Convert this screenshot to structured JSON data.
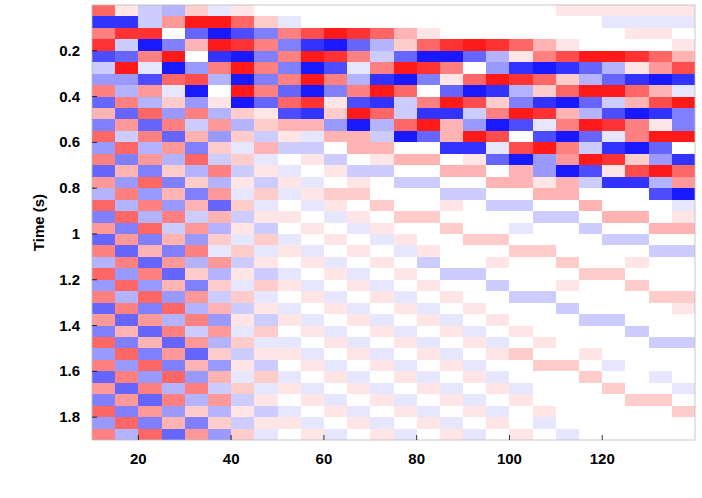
{
  "chart_data": {
    "type": "heatmap",
    "ylabel": "Time (s)",
    "xlim": [
      10,
      140
    ],
    "ylim": [
      1.9,
      0
    ],
    "xticks": [
      20,
      40,
      60,
      80,
      100,
      120
    ],
    "yticks": [
      0.2,
      0.4,
      0.6,
      0.8,
      1,
      1.2,
      1.4,
      1.6,
      1.8
    ],
    "zlim": [
      -10,
      10
    ],
    "xbins": [
      10,
      15,
      20,
      25,
      30,
      35,
      40,
      45,
      50,
      55,
      60,
      65,
      70,
      75,
      80,
      85,
      90,
      95,
      100,
      105,
      110,
      115,
      120,
      125,
      130,
      135,
      140
    ],
    "ybins": [
      0,
      0.05,
      0.1,
      0.15,
      0.2,
      0.25,
      0.3,
      0.35,
      0.4,
      0.45,
      0.5,
      0.55,
      0.6,
      0.65,
      0.7,
      0.75,
      0.8,
      0.85,
      0.9,
      0.95,
      1,
      1.05,
      1.1,
      1.15,
      1.2,
      1.25,
      1.3,
      1.35,
      1.4,
      1.45,
      1.5,
      1.55,
      1.6,
      1.65,
      1.7,
      1.75,
      1.8,
      1.85,
      1.9
    ],
    "cells": [
      [
        6,
        1,
        -2,
        -3,
        2,
        -1,
        1,
        0,
        0,
        0,
        0,
        0,
        0,
        0,
        0,
        0,
        0,
        0,
        0,
        0,
        1,
        1,
        1,
        1,
        1,
        1
      ],
      [
        -8,
        -8,
        -2,
        4,
        9,
        9,
        6,
        2,
        -1,
        0,
        0,
        0,
        0,
        0,
        0,
        0,
        0,
        0,
        0,
        0,
        0,
        0,
        -1,
        -1,
        -1,
        -1
      ],
      [
        5,
        8,
        8,
        0,
        -6,
        -9,
        -7,
        -5,
        5,
        7,
        9,
        8,
        6,
        3,
        1,
        0,
        0,
        0,
        0,
        0,
        0,
        0,
        0,
        1,
        1,
        0
      ],
      [
        8,
        -2,
        -9,
        -5,
        3,
        9,
        8,
        5,
        -5,
        -8,
        -9,
        -6,
        -3,
        2,
        6,
        8,
        9,
        8,
        6,
        3,
        1,
        0,
        0,
        0,
        0,
        1
      ],
      [
        -7,
        -6,
        5,
        9,
        0,
        -8,
        -9,
        -5,
        5,
        9,
        8,
        5,
        -2,
        -6,
        -9,
        -9,
        -6,
        -3,
        1,
        5,
        7,
        9,
        9,
        8,
        6,
        3
      ],
      [
        -2,
        9,
        -1,
        -9,
        -4,
        5,
        9,
        5,
        -5,
        -9,
        -7,
        -1,
        5,
        9,
        8,
        5,
        0,
        -4,
        -8,
        -9,
        -8,
        -6,
        -3,
        1,
        4,
        7
      ],
      [
        -4,
        -4,
        -7,
        6,
        7,
        -3,
        -9,
        -5,
        5,
        9,
        5,
        -3,
        -8,
        -9,
        -5,
        1,
        6,
        9,
        8,
        6,
        2,
        -3,
        -6,
        -8,
        -9,
        -8
      ],
      [
        5,
        -3,
        4,
        -1,
        -9,
        0,
        9,
        5,
        -6,
        -9,
        -5,
        5,
        9,
        6,
        0,
        -6,
        -9,
        -8,
        -3,
        2,
        6,
        9,
        9,
        6,
        3,
        -1
      ],
      [
        -6,
        5,
        -3,
        2,
        -4,
        1,
        -9,
        -6,
        6,
        8,
        1,
        -7,
        -8,
        -2,
        5,
        9,
        7,
        2,
        -5,
        -8,
        -9,
        -6,
        -2,
        3,
        7,
        9
      ],
      [
        3,
        -6,
        6,
        -4,
        5,
        -3,
        2,
        1,
        -7,
        -8,
        2,
        9,
        6,
        -2,
        -8,
        -8,
        -2,
        5,
        9,
        8,
        3,
        -3,
        -7,
        -9,
        -8,
        -5
      ],
      [
        -5,
        4,
        -6,
        5,
        -2,
        4,
        -3,
        2,
        3,
        3,
        -4,
        -9,
        -3,
        6,
        9,
        3,
        -4,
        -9,
        -7,
        -1,
        5,
        9,
        8,
        5,
        1,
        -5
      ],
      [
        6,
        -2,
        5,
        -6,
        3,
        -4,
        2,
        -2,
        1,
        -1,
        3,
        3,
        -2,
        -9,
        -6,
        3,
        9,
        7,
        0,
        -7,
        -9,
        -6,
        -1,
        5,
        9,
        9
      ],
      [
        -4,
        6,
        -3,
        4,
        -5,
        2,
        -1,
        3,
        -2,
        -2,
        0,
        3,
        3,
        0,
        0,
        -8,
        -8,
        -1,
        7,
        9,
        5,
        -2,
        -8,
        -9,
        -6,
        0
      ],
      [
        5,
        -5,
        4,
        -3,
        6,
        -2,
        2,
        -1,
        0,
        1,
        -2,
        0,
        1,
        3,
        3,
        0,
        1,
        -6,
        -9,
        -4,
        4,
        9,
        8,
        2,
        -4,
        -8
      ],
      [
        -6,
        3,
        -5,
        2,
        -3,
        5,
        -2,
        1,
        -1,
        0,
        1,
        -2,
        -2,
        0,
        0,
        3,
        3,
        0,
        3,
        -4,
        -9,
        -7,
        1,
        7,
        9,
        6
      ],
      [
        4,
        -4,
        6,
        -5,
        2,
        -3,
        1,
        -2,
        1,
        -1,
        0,
        1,
        0,
        -2,
        -2,
        0,
        0,
        3,
        3,
        1,
        3,
        -2,
        -8,
        -8,
        -3,
        4
      ],
      [
        -3,
        5,
        -4,
        3,
        -5,
        4,
        -1,
        2,
        -1,
        1,
        2,
        2,
        0,
        0,
        0,
        -2,
        -2,
        0,
        0,
        3,
        3,
        0,
        0,
        0,
        -7,
        -9
      ],
      [
        6,
        -3,
        5,
        -4,
        3,
        -6,
        2,
        -1,
        0,
        -1,
        1,
        0,
        2,
        0,
        0,
        1,
        0,
        -2,
        -2,
        0,
        0,
        3,
        0,
        0,
        0,
        -1
      ],
      [
        -5,
        6,
        -3,
        5,
        -2,
        3,
        -2,
        1,
        1,
        0,
        -1,
        1,
        0,
        2,
        2,
        0,
        0,
        0,
        0,
        -2,
        -2,
        0,
        3,
        3,
        0,
        1
      ],
      [
        4,
        -5,
        6,
        -2,
        4,
        -3,
        1,
        -2,
        0,
        1,
        0,
        -1,
        1,
        0,
        0,
        2,
        0,
        0,
        -1,
        0,
        0,
        -2,
        0,
        0,
        3,
        3
      ],
      [
        -6,
        4,
        -5,
        3,
        -4,
        2,
        -1,
        2,
        -1,
        0,
        1,
        0,
        -1,
        1,
        0,
        0,
        2,
        2,
        0,
        0,
        0,
        0,
        -2,
        -2,
        0,
        0
      ],
      [
        5,
        -6,
        3,
        -5,
        5,
        -1,
        2,
        -1,
        1,
        -1,
        0,
        1,
        0,
        -1,
        1,
        0,
        0,
        0,
        2,
        2,
        0,
        0,
        0,
        0,
        -2,
        -2
      ],
      [
        -3,
        5,
        -6,
        4,
        -3,
        4,
        -2,
        1,
        0,
        1,
        -1,
        0,
        1,
        0,
        -2,
        0,
        0,
        1,
        0,
        0,
        2,
        0,
        0,
        1,
        0,
        0
      ],
      [
        6,
        -4,
        5,
        -6,
        2,
        -3,
        1,
        -2,
        -1,
        0,
        1,
        -1,
        0,
        1,
        0,
        -2,
        -2,
        0,
        0,
        0,
        0,
        2,
        2,
        0,
        0,
        0
      ],
      [
        -4,
        6,
        -4,
        3,
        -5,
        2,
        -1,
        2,
        1,
        -1,
        0,
        1,
        -1,
        0,
        1,
        0,
        0,
        -2,
        0,
        0,
        1,
        0,
        0,
        2,
        0,
        0
      ],
      [
        5,
        -3,
        6,
        -4,
        4,
        -2,
        2,
        -1,
        0,
        1,
        -1,
        0,
        1,
        -1,
        0,
        1,
        0,
        0,
        -2,
        -2,
        0,
        0,
        0,
        0,
        2,
        2
      ],
      [
        -6,
        5,
        -5,
        6,
        -3,
        3,
        -2,
        1,
        -1,
        0,
        1,
        -1,
        0,
        1,
        -1,
        0,
        1,
        0,
        0,
        0,
        -2,
        0,
        0,
        0,
        0,
        1
      ],
      [
        4,
        -6,
        4,
        -3,
        5,
        -4,
        1,
        -2,
        1,
        -1,
        0,
        1,
        -1,
        0,
        1,
        -1,
        0,
        1,
        0,
        0,
        0,
        -2,
        -2,
        0,
        0,
        0
      ],
      [
        -5,
        3,
        -6,
        5,
        -2,
        4,
        -1,
        2,
        0,
        1,
        -1,
        0,
        1,
        -1,
        0,
        1,
        -1,
        0,
        1,
        0,
        0,
        0,
        0,
        -2,
        0,
        0
      ],
      [
        6,
        -5,
        3,
        -6,
        4,
        -3,
        2,
        -1,
        -1,
        0,
        1,
        -1,
        0,
        1,
        -1,
        0,
        1,
        -1,
        0,
        1,
        0,
        0,
        0,
        0,
        -2,
        -2
      ],
      [
        -4,
        6,
        -5,
        4,
        -6,
        2,
        -2,
        1,
        1,
        -1,
        0,
        1,
        -1,
        0,
        1,
        -1,
        0,
        1,
        2,
        0,
        0,
        1,
        0,
        0,
        0,
        0
      ],
      [
        5,
        -4,
        6,
        -5,
        3,
        -4,
        1,
        -2,
        0,
        1,
        -1,
        0,
        1,
        -1,
        0,
        1,
        -1,
        0,
        0,
        2,
        2,
        0,
        -1,
        0,
        0,
        0
      ],
      [
        -6,
        5,
        -4,
        6,
        -4,
        3,
        -1,
        2,
        -1,
        0,
        1,
        -1,
        0,
        1,
        -1,
        0,
        1,
        -1,
        0,
        0,
        0,
        2,
        0,
        0,
        -1,
        0
      ],
      [
        4,
        -6,
        5,
        -3,
        5,
        -2,
        2,
        -1,
        1,
        -1,
        0,
        1,
        -1,
        0,
        1,
        -1,
        0,
        1,
        -1,
        0,
        0,
        0,
        2,
        0,
        0,
        -1
      ],
      [
        -5,
        4,
        -6,
        5,
        -3,
        4,
        -2,
        1,
        0,
        1,
        -1,
        0,
        1,
        -1,
        0,
        1,
        -1,
        0,
        1,
        0,
        0,
        0,
        0,
        2,
        2,
        0
      ],
      [
        6,
        -5,
        4,
        -4,
        2,
        -3,
        1,
        -2,
        -1,
        0,
        1,
        -1,
        0,
        1,
        -1,
        0,
        1,
        -1,
        0,
        1,
        0,
        0,
        0,
        0,
        0,
        2
      ],
      [
        -4,
        6,
        -5,
        3,
        -5,
        2,
        -2,
        1,
        1,
        -1,
        0,
        1,
        -1,
        0,
        1,
        -1,
        0,
        1,
        0,
        -1,
        0,
        0,
        0,
        0,
        0,
        0
      ],
      [
        5,
        -3,
        6,
        -6,
        4,
        -4,
        2,
        -1,
        0,
        1,
        -1,
        0,
        1,
        -1,
        0,
        1,
        -1,
        0,
        1,
        0,
        -1,
        0,
        0,
        0,
        0,
        0
      ]
    ]
  }
}
